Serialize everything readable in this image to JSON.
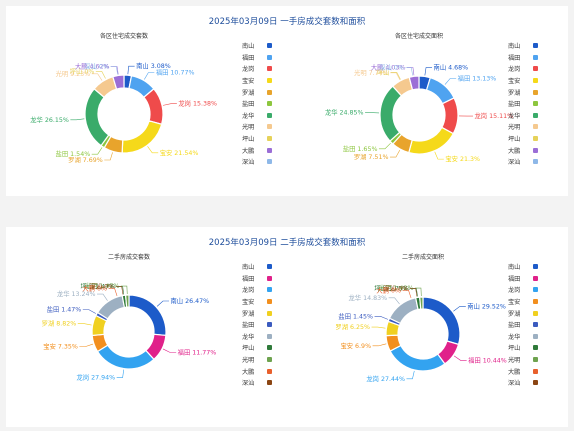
{
  "sections": [
    {
      "title": "2025年03月09日 一手房成交套数和面积",
      "legend": [
        "南山",
        "福田",
        "龙岗",
        "宝安",
        "罗湖",
        "盐田",
        "龙华",
        "光明",
        "坪山",
        "大鹏",
        "深汕"
      ],
      "colors": {
        "南山": "#1d5bc9",
        "福田": "#4fa3f0",
        "龙岗": "#ef4b4b",
        "宝安": "#f5d91a",
        "罗湖": "#e8a42c",
        "盐田": "#8dc63f",
        "龙华": "#3aab6a",
        "光明": "#f5c98f",
        "坪山": "#e6d25a",
        "大鹏": "#9b6ed6",
        "深汕": "#8eb8e8"
      }
    },
    {
      "title": "2025年03月09日 二手房成交套数和面积",
      "legend": [
        "南山",
        "福田",
        "龙岗",
        "宝安",
        "罗湖",
        "盐田",
        "龙华",
        "坪山",
        "光明",
        "大鹏",
        "深汕"
      ],
      "colors": {
        "南山": "#1d5bc9",
        "福田": "#e0218a",
        "龙岗": "#33a3f0",
        "宝安": "#f28f1e",
        "罗湖": "#f0d020",
        "盐田": "#3b5bbf",
        "龙华": "#9db0c2",
        "坪山": "#2f7a3a",
        "光明": "#6ea34f",
        "大鹏": "#e8602c",
        "深汕": "#8b4513"
      }
    }
  ],
  "chart_data": [
    {
      "type": "pie",
      "section": 0,
      "title": "各区住宅成交套数",
      "slices": [
        {
          "name": "南山",
          "value": 3.08
        },
        {
          "name": "福田",
          "value": 10.77
        },
        {
          "name": "龙岗",
          "value": 15.38
        },
        {
          "name": "宝安",
          "value": 21.54
        },
        {
          "name": "罗湖",
          "value": 7.69
        },
        {
          "name": "盐田",
          "value": 1.54
        },
        {
          "name": "龙华",
          "value": 26.15
        },
        {
          "name": "光明",
          "value": 9.23
        },
        {
          "name": "坪山",
          "value": 0
        },
        {
          "name": "大鹏",
          "value": 4.62
        },
        {
          "name": "深汕",
          "value": 0
        }
      ],
      "labels": [
        "南山 3.08%",
        "福田 10.77%",
        "龙岗 15.38%",
        "宝安 21.54%",
        "罗湖 7.69%",
        "盐田 1.54%",
        "龙华 26.15%",
        "光明 9.23%",
        "坪山 0%",
        "大鹏 4.62%",
        "深汕 0%"
      ]
    },
    {
      "type": "pie",
      "section": 0,
      "title": "各区住宅成交面积",
      "slices": [
        {
          "name": "南山",
          "value": 4.68
        },
        {
          "name": "福田",
          "value": 13.13
        },
        {
          "name": "龙岗",
          "value": 15.11
        },
        {
          "name": "宝安",
          "value": 21.3
        },
        {
          "name": "罗湖",
          "value": 7.51
        },
        {
          "name": "盐田",
          "value": 1.65
        },
        {
          "name": "龙华",
          "value": 24.85
        },
        {
          "name": "光明",
          "value": 7.74
        },
        {
          "name": "坪山",
          "value": 0
        },
        {
          "name": "大鹏",
          "value": 4.03
        },
        {
          "name": "深汕",
          "value": 0
        }
      ],
      "labels": [
        "南山 4.68%",
        "福田 13.13%",
        "龙岗 15.11%",
        "宝安 21.3%",
        "罗湖 7.51%",
        "盐田 1.65%",
        "龙华 24.85%",
        "光明 7.74%",
        "坪山",
        "大鹏 4.03%",
        "深汕 0%"
      ]
    },
    {
      "type": "pie",
      "section": 1,
      "title": "二手房成交套数",
      "slices": [
        {
          "name": "南山",
          "value": 26.47
        },
        {
          "name": "福田",
          "value": 11.77
        },
        {
          "name": "龙岗",
          "value": 27.94
        },
        {
          "name": "宝安",
          "value": 7.35
        },
        {
          "name": "罗湖",
          "value": 8.82
        },
        {
          "name": "盐田",
          "value": 1.47
        },
        {
          "name": "龙华",
          "value": 13.24
        },
        {
          "name": "坪山",
          "value": 1.47
        },
        {
          "name": "光明",
          "value": 1.47
        },
        {
          "name": "大鹏",
          "value": 0
        },
        {
          "name": "深汕",
          "value": 0
        }
      ],
      "labels": [
        "南山 26.47%",
        "福田 11.77%",
        "龙岗 27.94%",
        "宝安 7.35%",
        "罗湖 8.82%",
        "盐田 1.47%",
        "龙华 13.24%",
        "坪山 1.47%",
        "光明 1.47%",
        "大鹏 0%",
        "深汕 0%"
      ]
    },
    {
      "type": "pie",
      "section": 1,
      "title": "二手房成交面积",
      "slices": [
        {
          "name": "南山",
          "value": 29.52
        },
        {
          "name": "福田",
          "value": 10.44
        },
        {
          "name": "龙岗",
          "value": 27.44
        },
        {
          "name": "宝安",
          "value": 6.9
        },
        {
          "name": "罗湖",
          "value": 6.25
        },
        {
          "name": "盐田",
          "value": 1.45
        },
        {
          "name": "龙华",
          "value": 14.83
        },
        {
          "name": "坪山",
          "value": 1.75
        },
        {
          "name": "光明",
          "value": 1.42
        },
        {
          "name": "大鹏",
          "value": 0
        },
        {
          "name": "深汕",
          "value": 0
        }
      ],
      "labels": [
        "南山 29.52%",
        "福田 10.44%",
        "龙岗 27.44%",
        "宝安 6.9%",
        "罗湖 6.25%",
        "盐田 1.45%",
        "龙华 14.83%",
        "坪山 1.75%",
        "光明 1.42%",
        "大鹏 0%",
        "深汕 0%"
      ]
    }
  ]
}
